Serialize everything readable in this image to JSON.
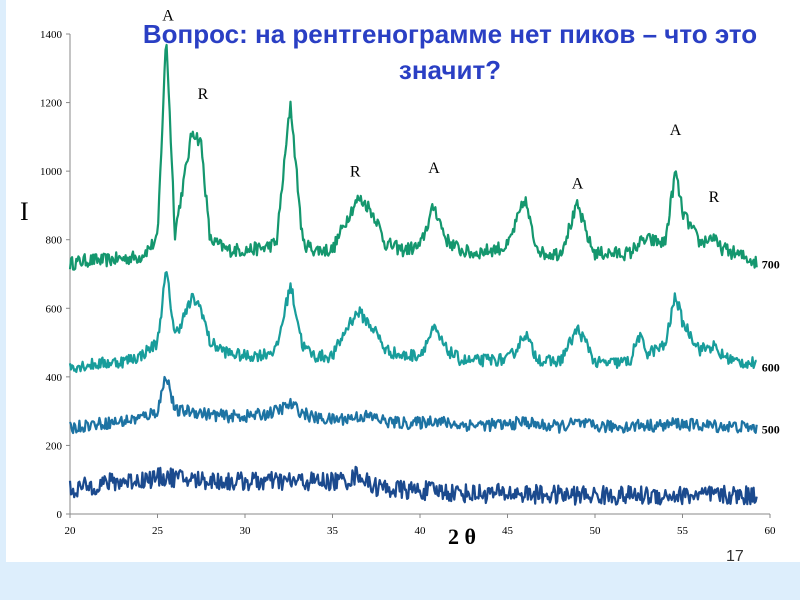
{
  "slide": {
    "title": "Вопрос: на рентгенограмме нет пиков – что это значит?",
    "page_number": "17"
  },
  "chart_data": {
    "type": "line",
    "title": "",
    "xlabel": "2 θ",
    "ylabel": "I",
    "xlim": [
      20,
      60
    ],
    "ylim": [
      0,
      1400
    ],
    "xticks": [
      20,
      25,
      30,
      35,
      40,
      45,
      50,
      55,
      60
    ],
    "yticks": [
      0,
      200,
      400,
      600,
      800,
      1000,
      1200,
      1400
    ],
    "grid": false,
    "x": [
      20,
      21,
      22,
      23,
      24,
      25,
      25.5,
      26,
      27,
      27.5,
      28,
      29,
      30,
      31,
      31.8,
      32.6,
      33.3,
      34,
      35,
      36,
      36.5,
      37,
      37.5,
      38,
      39,
      40,
      40.8,
      41.5,
      42.3,
      43,
      44,
      45,
      45.5,
      46,
      46.5,
      47,
      48,
      49,
      49.7,
      50,
      51,
      52,
      52.5,
      53,
      54,
      54.6,
      55,
      56,
      56.8,
      57,
      58,
      59,
      59.3
    ],
    "series": [
      {
        "name": "700",
        "color": "#14976e",
        "values": [
          730,
          740,
          740,
          745,
          750,
          800,
          1400,
          820,
          1120,
          1080,
          800,
          770,
          770,
          775,
          790,
          1200,
          790,
          770,
          770,
          880,
          920,
          900,
          860,
          790,
          770,
          780,
          900,
          800,
          770,
          760,
          770,
          780,
          850,
          920,
          800,
          760,
          760,
          900,
          790,
          760,
          760,
          760,
          790,
          800,
          790,
          1000,
          880,
          790,
          810,
          780,
          760,
          740,
          730
        ]
      },
      {
        "name": "600",
        "color": "#189d9b",
        "values": [
          430,
          435,
          440,
          445,
          460,
          500,
          710,
          520,
          630,
          600,
          500,
          470,
          460,
          465,
          480,
          670,
          490,
          460,
          460,
          560,
          590,
          560,
          530,
          480,
          460,
          465,
          540,
          480,
          450,
          445,
          450,
          450,
          480,
          530,
          470,
          445,
          445,
          540,
          480,
          440,
          440,
          445,
          520,
          470,
          490,
          640,
          560,
          480,
          490,
          470,
          445,
          440,
          430
        ]
      },
      {
        "name": "500",
        "color": "#1d73a3",
        "values": [
          250,
          260,
          265,
          270,
          280,
          300,
          410,
          300,
          300,
          295,
          290,
          285,
          285,
          290,
          300,
          320,
          295,
          280,
          275,
          280,
          285,
          285,
          280,
          270,
          265,
          265,
          275,
          265,
          260,
          260,
          260,
          260,
          265,
          270,
          262,
          258,
          255,
          265,
          258,
          255,
          255,
          255,
          260,
          258,
          258,
          265,
          262,
          258,
          258,
          256,
          255,
          252,
          250
        ]
      },
      {
        "name": "",
        "color": "#1b4a8e",
        "values": [
          70,
          80,
          90,
          95,
          100,
          105,
          110,
          105,
          100,
          100,
          98,
          95,
          95,
          95,
          95,
          95,
          95,
          95,
          95,
          100,
          120,
          90,
          80,
          75,
          70,
          68,
          68,
          65,
          62,
          60,
          60,
          60,
          60,
          58,
          58,
          56,
          55,
          55,
          55,
          54,
          54,
          54,
          54,
          54,
          54,
          54,
          54,
          54,
          54,
          54,
          54,
          54,
          54
        ]
      }
    ],
    "annotations": [
      {
        "text": "A",
        "x": 25.6,
        "y": 1440
      },
      {
        "text": "R",
        "x": 27.6,
        "y": 1210
      },
      {
        "text": "R",
        "x": 36.3,
        "y": 985
      },
      {
        "text": "A",
        "x": 40.8,
        "y": 995
      },
      {
        "text": "A",
        "x": 49.0,
        "y": 950
      },
      {
        "text": "A",
        "x": 54.6,
        "y": 1105
      },
      {
        "text": "R",
        "x": 56.8,
        "y": 910
      }
    ],
    "noise": {
      "700": 20,
      "600": 18,
      "500": 18,
      "": 28
    }
  }
}
